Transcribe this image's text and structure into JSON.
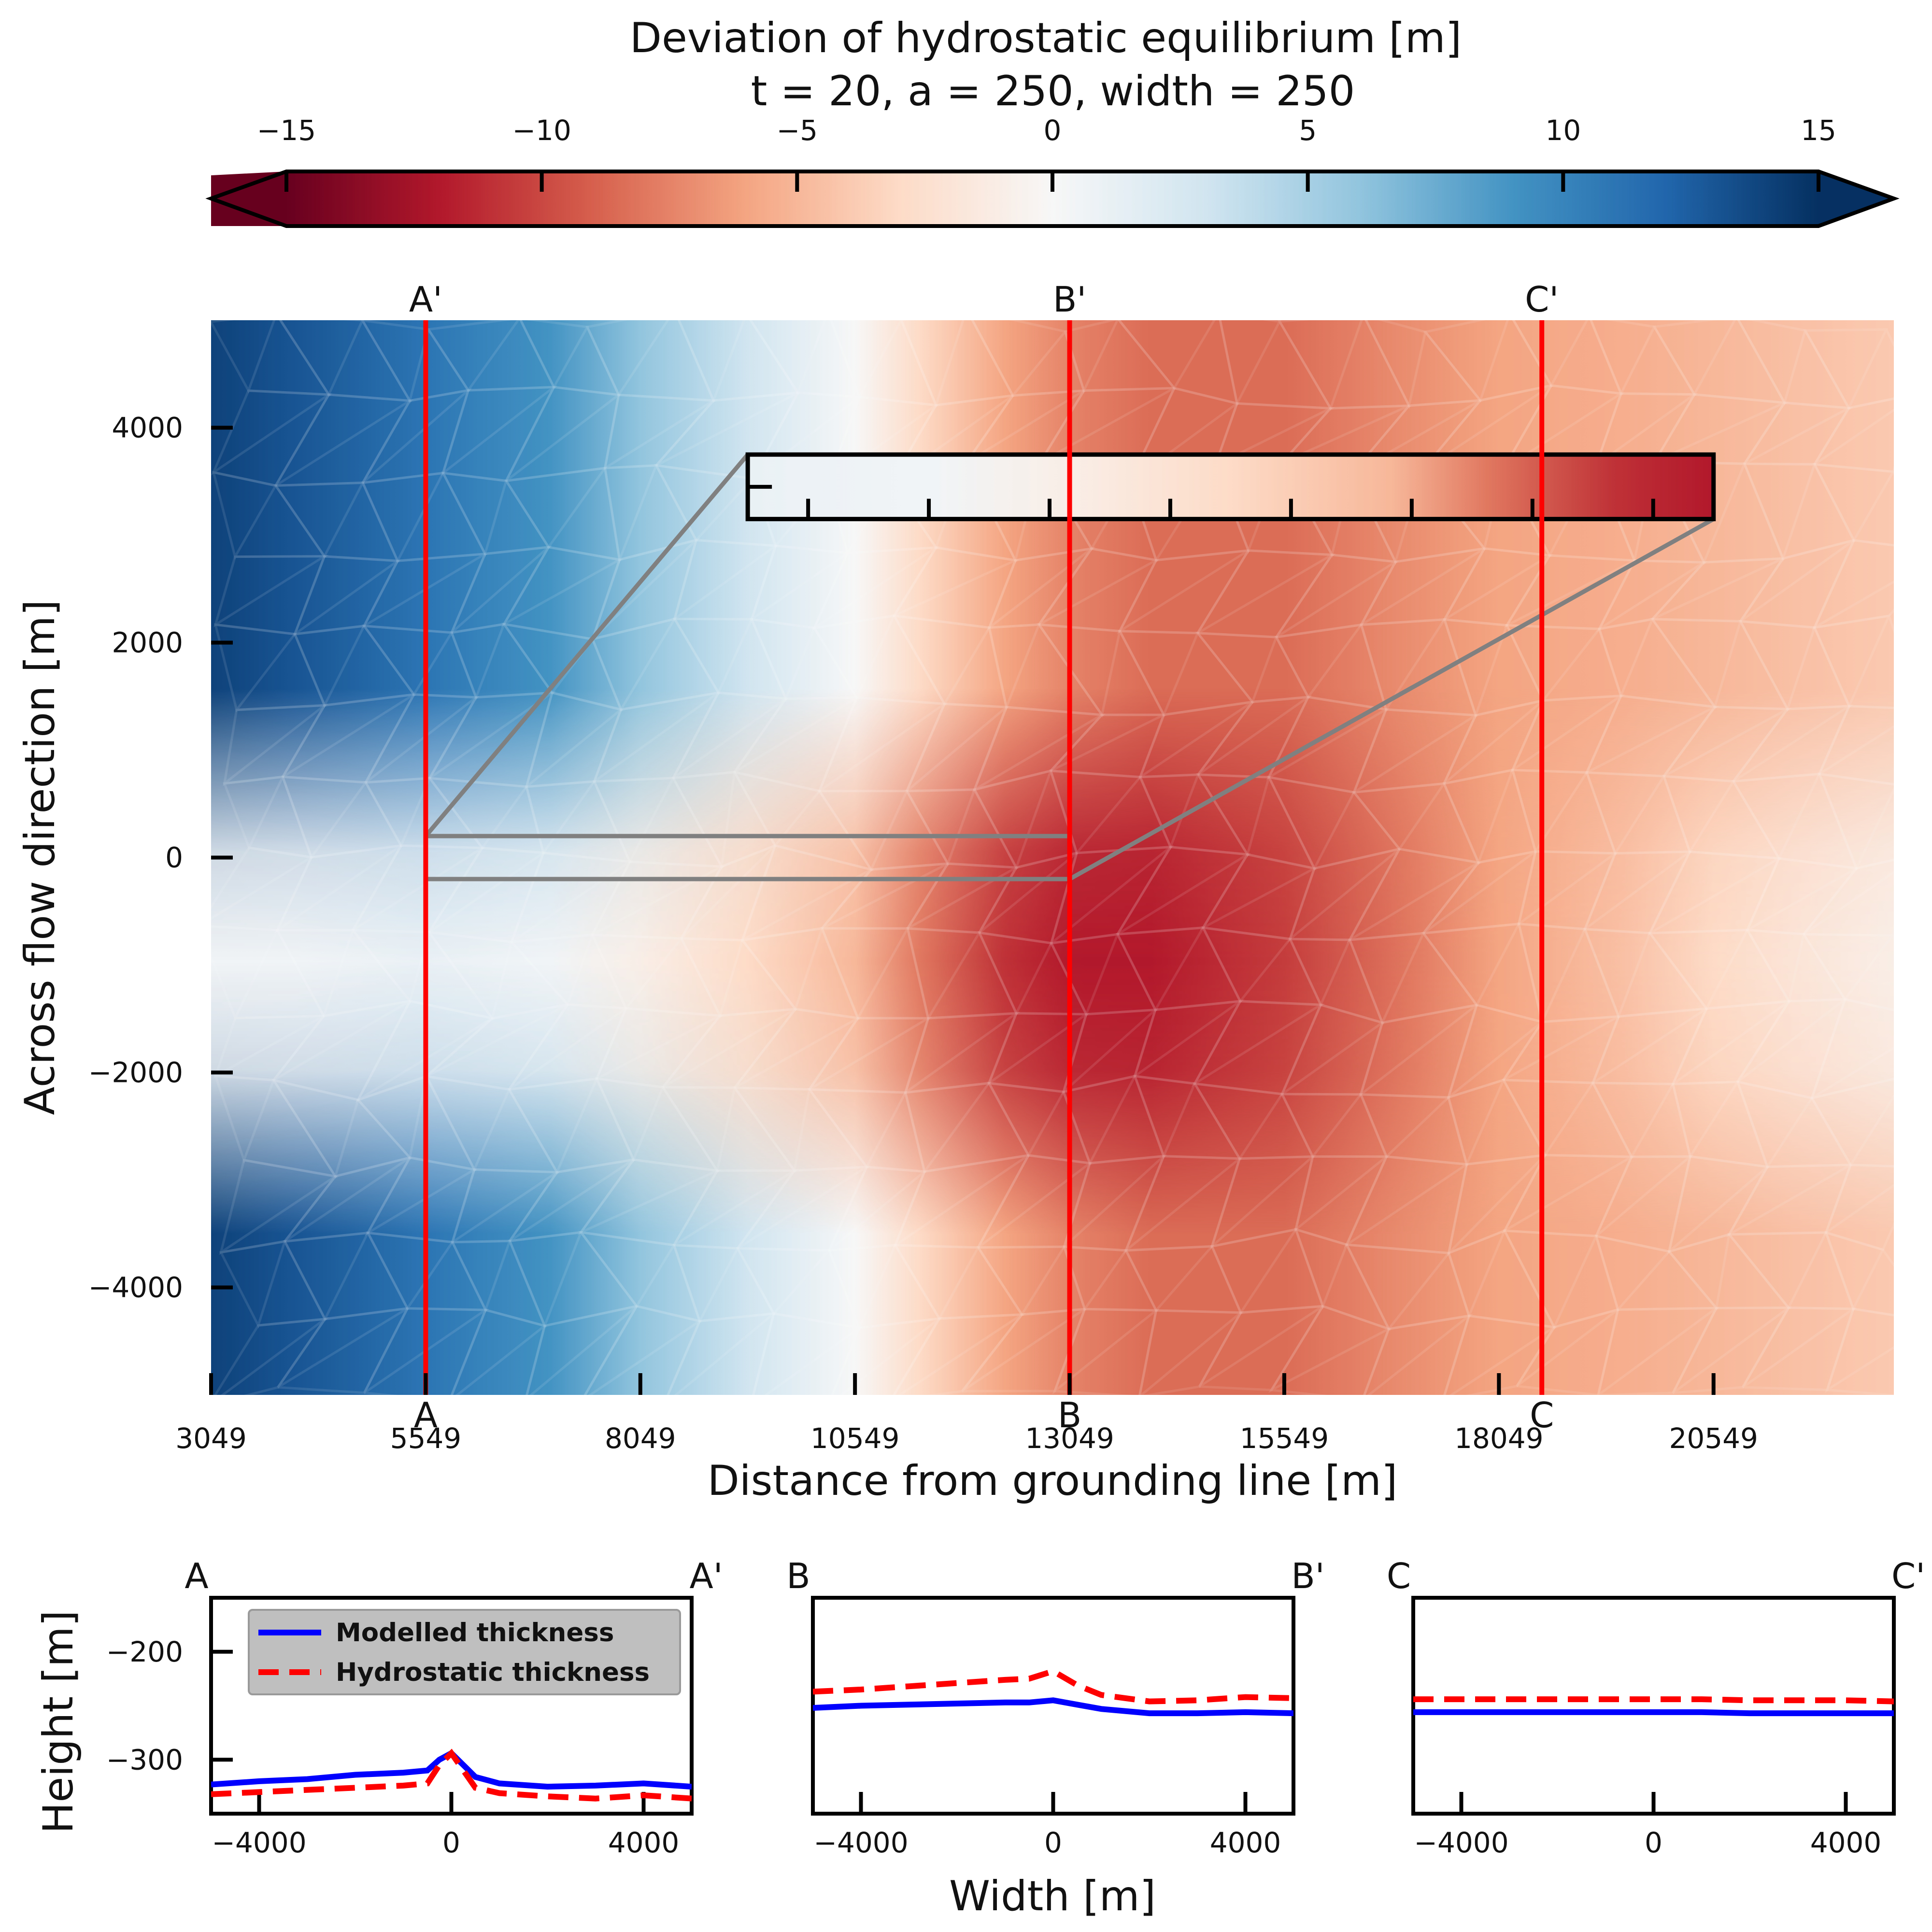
{
  "chart_data": {
    "colorbar": {
      "title_line1": "Deviation of hydrostatic equilibrium [m]",
      "title_line2": "t = 20, a = 250, width = 250",
      "ticks": [
        -15,
        -10,
        -5,
        0,
        5,
        10,
        15
      ],
      "tick_labels": [
        "−15",
        "−10",
        "−5",
        "0",
        "5",
        "10",
        "15"
      ],
      "range": [
        -15,
        15
      ],
      "extend": "both",
      "colormap": "RdBu",
      "stops": [
        "#67001f",
        "#b2182b",
        "#d6604d",
        "#f4a582",
        "#fddbc7",
        "#f7f7f7",
        "#d1e5f0",
        "#92c5de",
        "#4393c3",
        "#2166ac",
        "#053061"
      ]
    },
    "map": {
      "type": "heatmap",
      "xlabel": "Distance from grounding line [m]",
      "ylabel": "Across flow direction [m]",
      "xlim": [
        3049,
        22649
      ],
      "ylim": [
        -5000,
        5000
      ],
      "x_ticks": [
        3049,
        5549,
        8049,
        10549,
        13049,
        15549,
        18049,
        20549
      ],
      "x_tick_labels": [
        "3049",
        "5549",
        "8049",
        "10549",
        "13049",
        "15549",
        "18049",
        "20549"
      ],
      "y_ticks": [
        -4000,
        -2000,
        0,
        2000,
        4000
      ],
      "y_tick_labels": [
        "−4000",
        "−2000",
        "0",
        "2000",
        "4000"
      ],
      "field_profile": {
        "x": [
          3049,
          4000,
          5549,
          7000,
          8049,
          9300,
          10549,
          11300,
          12300,
          13049,
          14000,
          15549,
          17000,
          18049,
          19500,
          20549,
          21500,
          22649
        ],
        "background": [
          14,
          13,
          11,
          9,
          6,
          3,
          0,
          -3,
          -6,
          -7.5,
          -8.5,
          -8.5,
          -7,
          -6,
          -5.5,
          -5,
          -4.5,
          -4
        ],
        "channel": [
          0.5,
          0.5,
          1,
          0.5,
          -1,
          -3,
          -5,
          -8,
          -11,
          -12,
          -12,
          -10.5,
          -8,
          -6,
          -4.5,
          -3,
          -2,
          -1
        ]
      },
      "sections": [
        {
          "x": 5549,
          "bottom_label": "A",
          "top_label": "A'"
        },
        {
          "x": 13049,
          "bottom_label": "B",
          "top_label": "B'"
        },
        {
          "x": 18549,
          "bottom_label": "C",
          "top_label": "C'"
        }
      ],
      "zoom_source": {
        "x": [
          5549,
          13049
        ],
        "y": [
          -200,
          200
        ]
      },
      "zoom_inset": {
        "x": [
          9300,
          20549
        ],
        "y": [
          3150,
          3750
        ],
        "x_ticks": 7
      }
    },
    "profiles": {
      "xlabel": "Width [m]",
      "ylabel": "Height [m]",
      "xlim": [
        -5000,
        5000
      ],
      "ylim": [
        -350,
        -150
      ],
      "x_ticks": [
        -4000,
        0,
        4000
      ],
      "x_tick_labels": [
        "−4000",
        "0",
        "4000"
      ],
      "y_ticks": [
        -200,
        -300
      ],
      "y_tick_labels": [
        "−200",
        "−300"
      ],
      "legend": [
        "Modelled thickness",
        "Hydrostatic thickness"
      ],
      "series_colors": [
        "#0000ff",
        "#ff0000"
      ],
      "panels": [
        {
          "left_label": "A",
          "right_label": "A'",
          "x": [
            -5000,
            -4000,
            -3000,
            -2000,
            -1000,
            -500,
            -250,
            0,
            250,
            500,
            1000,
            2000,
            3000,
            4000,
            5000
          ],
          "modelled": [
            -323,
            -320,
            -318,
            -314,
            -312,
            -310,
            -300,
            -294,
            -305,
            -316,
            -322,
            -325,
            -324,
            -322,
            -325
          ],
          "hydrostatic": [
            -332,
            -330,
            -328,
            -326,
            -324,
            -322,
            -305,
            -294,
            -310,
            -326,
            -331,
            -334,
            -336,
            -333,
            -336
          ]
        },
        {
          "left_label": "B",
          "right_label": "B'",
          "x": [
            -5000,
            -4000,
            -3000,
            -2000,
            -1000,
            -500,
            0,
            500,
            1000,
            2000,
            3000,
            4000,
            5000
          ],
          "modelled": [
            -252,
            -250,
            -249,
            -248,
            -247,
            -247,
            -245,
            -249,
            -253,
            -257,
            -257,
            -256,
            -257
          ],
          "hydrostatic": [
            -237,
            -235,
            -232,
            -229,
            -226,
            -225,
            -218,
            -231,
            -240,
            -246,
            -245,
            -242,
            -243
          ]
        },
        {
          "left_label": "C",
          "right_label": "C'",
          "x": [
            -5000,
            -4000,
            -3000,
            -2000,
            -1000,
            0,
            1000,
            2000,
            3000,
            4000,
            5000
          ],
          "modelled": [
            -256,
            -256,
            -256,
            -256,
            -256,
            -256,
            -256,
            -257,
            -257,
            -257,
            -257
          ],
          "hydrostatic": [
            -244,
            -244,
            -244,
            -244,
            -244,
            -244,
            -244,
            -245,
            -245,
            -245,
            -246
          ]
        }
      ]
    }
  }
}
